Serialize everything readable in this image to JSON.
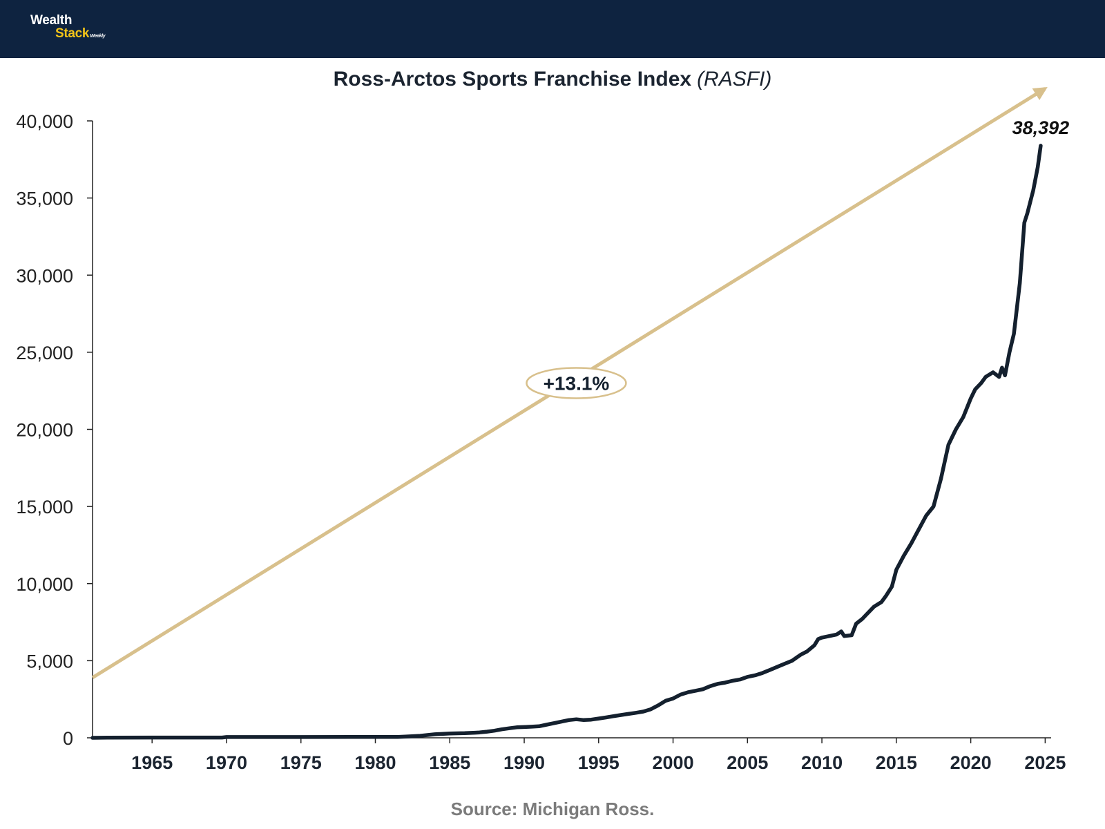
{
  "header": {
    "logo_line1": "Wealth",
    "logo_line2": "Stack",
    "logo_sub": "Weekly",
    "background_color": "#0e2340",
    "accent_color": "#f2c318"
  },
  "chart_data": {
    "type": "line",
    "title": "Ross-Arctos Sports Franchise Index",
    "subtitle": "(RASFI)",
    "xlabel": "",
    "ylabel": "",
    "xlim": [
      1961,
      2025.4
    ],
    "ylim": [
      0,
      40000
    ],
    "x_ticks": [
      "1965",
      "1970",
      "1975",
      "1980",
      "1985",
      "1990",
      "1995",
      "2000",
      "2005",
      "2010",
      "2015",
      "2020",
      "2025"
    ],
    "y_ticks": [
      "0",
      "5,000",
      "10,000",
      "15,000",
      "20,000",
      "25,000",
      "30,000",
      "35,000",
      "40,000"
    ],
    "grid": false,
    "series": [
      {
        "name": "RASFI",
        "color": "#14202e",
        "x": [
          1961.0,
          1962.0,
          1965.0,
          1969.7,
          1970.0,
          1975.0,
          1981.5,
          1982.0,
          1983.0,
          1983.5,
          1984.0,
          1985.0,
          1986.0,
          1986.7,
          1987.0,
          1987.5,
          1988.0,
          1988.5,
          1989.0,
          1989.5,
          1990.0,
          1990.5,
          1991.0,
          1991.5,
          1992.0,
          1992.5,
          1993.0,
          1993.5,
          1994.0,
          1994.5,
          1995.0,
          1995.5,
          1996.0,
          1996.5,
          1997.0,
          1997.5,
          1998.0,
          1998.5,
          1999.0,
          1999.5,
          2000.0,
          2000.5,
          2001.0,
          2001.5,
          2002.0,
          2002.5,
          2003.0,
          2003.5,
          2004.0,
          2004.5,
          2005.0,
          2005.5,
          2006.0,
          2006.5,
          2007.0,
          2007.5,
          2008.0,
          2008.3,
          2008.6,
          2009.0,
          2009.5,
          2009.75,
          2010.0,
          2010.5,
          2011.0,
          2011.3,
          2011.5,
          2012.0,
          2012.3,
          2012.7,
          2013.0,
          2013.5,
          2014.0,
          2014.3,
          2014.7,
          2015.0,
          2015.5,
          2016.0,
          2016.5,
          2017.0,
          2017.5,
          2018.0,
          2018.5,
          2019.0,
          2019.5,
          2020.0,
          2020.3,
          2020.7,
          2021.0,
          2021.5,
          2021.9,
          2022.1,
          2022.3,
          2022.6,
          2022.9,
          2023.3,
          2023.6,
          2023.8,
          2024.2,
          2024.5,
          2024.7
        ],
        "values": [
          0,
          10,
          20,
          20,
          50,
          50,
          60,
          80,
          130,
          180,
          230,
          280,
          300,
          330,
          350,
          400,
          460,
          550,
          620,
          680,
          700,
          720,
          750,
          850,
          950,
          1050,
          1150,
          1200,
          1150,
          1180,
          1250,
          1320,
          1400,
          1480,
          1550,
          1620,
          1700,
          1850,
          2100,
          2400,
          2550,
          2800,
          2950,
          3050,
          3150,
          3350,
          3500,
          3580,
          3700,
          3780,
          3950,
          4050,
          4200,
          4400,
          4600,
          4800,
          5000,
          5200,
          5400,
          5600,
          6000,
          6400,
          6500,
          6600,
          6700,
          6900,
          6600,
          6650,
          7400,
          7700,
          8000,
          8500,
          8800,
          9200,
          9800,
          10900,
          11800,
          12600,
          13500,
          14400,
          15000,
          16800,
          19000,
          20000,
          20800,
          22000,
          22600,
          23000,
          23400,
          23700,
          23400,
          24000,
          23500,
          25000,
          26200,
          29500,
          33400,
          34000,
          35500,
          37000,
          38392
        ]
      },
      {
        "name": "+13.1% trend",
        "color": "#d8c08c",
        "x": [
          1961.0,
          2025.0
        ],
        "values": [
          3900,
          42100
        ]
      }
    ],
    "annotations": [
      {
        "text": "+13.1%",
        "x": 1993.5,
        "y": 23000,
        "style": "oval"
      },
      {
        "text": "38,392",
        "x": 2024.7,
        "y": 39600,
        "style": "bold-italic"
      }
    ]
  },
  "source": "Source: Michigan Ross."
}
